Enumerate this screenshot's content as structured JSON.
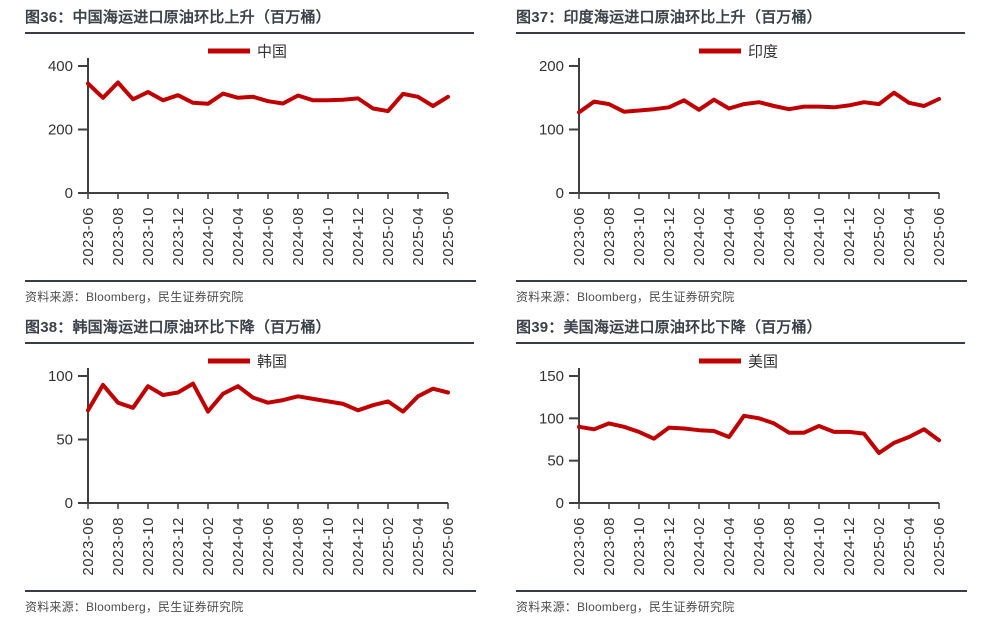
{
  "colors": {
    "series_red": "#c00000",
    "title_text": "#3b4149",
    "rule": "#363d49",
    "axis": "#404040",
    "tick_text": "#333333",
    "source_text": "#4d4d4d"
  },
  "x_tick_labels_shown": [
    "2023-06",
    "2023-08",
    "2023-10",
    "2023-12",
    "2024-02",
    "2024-04",
    "2024-06",
    "2024-08",
    "2024-10",
    "2024-12",
    "2025-02",
    "2025-04",
    "2025-06"
  ],
  "chart_data": [
    {
      "type": "line",
      "fig_no": "图36",
      "title": "图36：中国海运进口原油环比上升（百万桶）",
      "legend": "中国",
      "ylim": [
        0,
        400
      ],
      "yticks": [
        0,
        200,
        400
      ],
      "grid": false,
      "legend_position": "top-center",
      "x": [
        "2023-06",
        "2023-07",
        "2023-08",
        "2023-09",
        "2023-10",
        "2023-11",
        "2023-12",
        "2024-01",
        "2024-02",
        "2024-03",
        "2024-04",
        "2024-05",
        "2024-06",
        "2024-07",
        "2024-08",
        "2024-09",
        "2024-10",
        "2024-11",
        "2024-12",
        "2025-01",
        "2025-02",
        "2025-03",
        "2025-04",
        "2025-05",
        "2025-06"
      ],
      "values": [
        345,
        300,
        348,
        295,
        318,
        292,
        308,
        284,
        281,
        313,
        300,
        303,
        289,
        282,
        307,
        292,
        292,
        294,
        298,
        266,
        258,
        312,
        303,
        274,
        303
      ],
      "source": "资料来源：Bloomberg，民生证券研究院"
    },
    {
      "type": "line",
      "fig_no": "图37",
      "title": "图37：印度海运进口原油环比上升（百万桶）",
      "legend": "印度",
      "ylim": [
        0,
        200
      ],
      "yticks": [
        0,
        100,
        200
      ],
      "grid": false,
      "legend_position": "top-center",
      "x": [
        "2023-06",
        "2023-07",
        "2023-08",
        "2023-09",
        "2023-10",
        "2023-11",
        "2023-12",
        "2024-01",
        "2024-02",
        "2024-03",
        "2024-04",
        "2024-05",
        "2024-06",
        "2024-07",
        "2024-08",
        "2024-09",
        "2024-10",
        "2024-11",
        "2024-12",
        "2025-01",
        "2025-02",
        "2025-03",
        "2025-04",
        "2025-05",
        "2025-06"
      ],
      "values": [
        127,
        144,
        140,
        128,
        130,
        132,
        135,
        146,
        131,
        147,
        133,
        140,
        143,
        137,
        132,
        136,
        136,
        135,
        138,
        143,
        140,
        158,
        142,
        137,
        148
      ],
      "source": "资料来源：Bloomberg，民生证券研究院"
    },
    {
      "type": "line",
      "fig_no": "图38",
      "title": "图38：韩国海运进口原油环比下降（百万桶）",
      "legend": "韩国",
      "ylim": [
        0,
        100
      ],
      "yticks": [
        0,
        50,
        100
      ],
      "grid": false,
      "legend_position": "top-center",
      "x": [
        "2023-06",
        "2023-07",
        "2023-08",
        "2023-09",
        "2023-10",
        "2023-11",
        "2023-12",
        "2024-01",
        "2024-02",
        "2024-03",
        "2024-04",
        "2024-05",
        "2024-06",
        "2024-07",
        "2024-08",
        "2024-09",
        "2024-10",
        "2024-11",
        "2024-12",
        "2025-01",
        "2025-02",
        "2025-03",
        "2025-04",
        "2025-05",
        "2025-06"
      ],
      "values": [
        73,
        93,
        79,
        75,
        92,
        85,
        87,
        94,
        72,
        86,
        92,
        83,
        79,
        81,
        84,
        82,
        80,
        78,
        73,
        77,
        80,
        72,
        84,
        90,
        87
      ],
      "source": "资料来源：Bloomberg，民生证券研究院"
    },
    {
      "type": "line",
      "fig_no": "图39",
      "title": "图39：美国海运进口原油环比下降（百万桶）",
      "legend": "美国",
      "ylim": [
        0,
        150
      ],
      "yticks": [
        0,
        50,
        100,
        150
      ],
      "grid": false,
      "legend_position": "top-center",
      "x": [
        "2023-06",
        "2023-07",
        "2023-08",
        "2023-09",
        "2023-10",
        "2023-11",
        "2023-12",
        "2024-01",
        "2024-02",
        "2024-03",
        "2024-04",
        "2024-05",
        "2024-06",
        "2024-07",
        "2024-08",
        "2024-09",
        "2024-10",
        "2024-11",
        "2024-12",
        "2025-01",
        "2025-02",
        "2025-03",
        "2025-04",
        "2025-05",
        "2025-06"
      ],
      "values": [
        90,
        87,
        94,
        90,
        84,
        76,
        89,
        88,
        86,
        85,
        78,
        103,
        100,
        94,
        83,
        83,
        91,
        84,
        84,
        82,
        59,
        71,
        78,
        87,
        74
      ],
      "source": "资料来源：Bloomberg，民生证券研究院"
    }
  ]
}
